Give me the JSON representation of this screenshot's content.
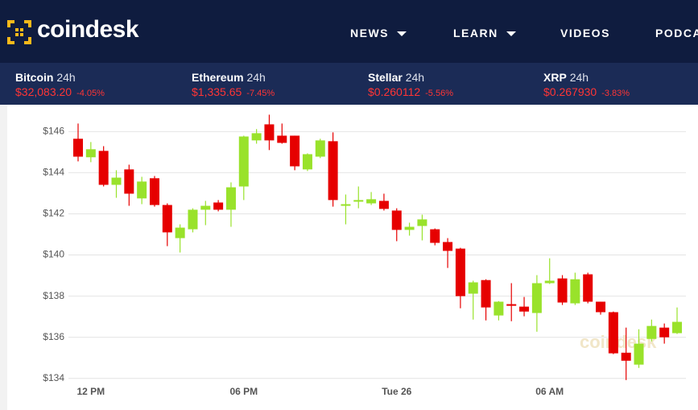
{
  "header": {
    "logo": "coindesk",
    "nav": [
      "NEWS",
      "LEARN",
      "VIDEOS",
      "PODCASTS"
    ]
  },
  "ticker": [
    {
      "name": "Bitcoin",
      "period": "24h",
      "price": "$32,083.20",
      "change": "-4.05%"
    },
    {
      "name": "Ethereum",
      "period": "24h",
      "price": "$1,335.65",
      "change": "-7.45%"
    },
    {
      "name": "Stellar",
      "period": "24h",
      "price": "$0.260112",
      "change": "-5.56%"
    },
    {
      "name": "XRP",
      "period": "24h",
      "price": "$0.267930",
      "change": "-3.83%"
    }
  ],
  "chart_data": {
    "type": "candlestick",
    "watermark": "coindesk",
    "categories": [
      null,
      "12 PM",
      null,
      null,
      null,
      null,
      null,
      null,
      null,
      null,
      null,
      null,
      null,
      "06 PM",
      null,
      null,
      null,
      null,
      null,
      null,
      null,
      null,
      null,
      null,
      null,
      "Tue 26",
      null,
      null,
      null,
      null,
      null,
      null,
      null,
      null,
      null,
      null,
      null,
      "06 AM",
      null,
      null,
      null,
      null,
      null,
      null,
      null,
      null,
      null,
      null
    ],
    "open": [
      145.65,
      144.75,
      145.06,
      143.41,
      144.16,
      142.75,
      143.73,
      142.43,
      140.82,
      141.25,
      142.2,
      142.55,
      142.2,
      143.33,
      145.57,
      146.35,
      145.8,
      145.8,
      144.16,
      144.78,
      145.53,
      142.39,
      142.59,
      142.51,
      142.63,
      142.16,
      141.22,
      141.41,
      141.25,
      140.63,
      140.31,
      138.12,
      138.78,
      137.06,
      137.61,
      137.49,
      137.18,
      138.63,
      138.86,
      137.65,
      139.06,
      137.73,
      137.22,
      135.25,
      134.67,
      135.92,
      136.47,
      136.2
    ],
    "high": [
      146.39,
      145.49,
      145.29,
      144.12,
      144.39,
      143.8,
      143.84,
      142.51,
      141.49,
      142.27,
      142.63,
      142.67,
      143.53,
      145.8,
      146.12,
      146.82,
      146.39,
      145.8,
      144.94,
      145.65,
      145.96,
      142.94,
      143.33,
      143.06,
      142.98,
      142.27,
      141.57,
      141.96,
      141.29,
      140.82,
      140.35,
      138.75,
      138.82,
      137.76,
      138.63,
      137.96,
      139.02,
      139.84,
      139.02,
      139.14,
      139.14,
      137.73,
      137.25,
      136.47,
      136.39,
      136.86,
      136.67,
      137.45
    ],
    "low": [
      144.55,
      144.51,
      143.33,
      142.78,
      142.39,
      142.47,
      142.35,
      140.43,
      140.12,
      141.1,
      141.45,
      142.12,
      141.37,
      142.67,
      145.41,
      145.1,
      145.41,
      144.12,
      144.08,
      144.71,
      142.35,
      141.49,
      142.27,
      142.43,
      142.16,
      140.67,
      140.94,
      140.71,
      140.47,
      139.37,
      137.41,
      136.86,
      136.82,
      136.82,
      136.78,
      137.02,
      136.27,
      138.59,
      137.57,
      137.57,
      137.65,
      137.1,
      135.18,
      133.92,
      134.51,
      135.8,
      135.69,
      136.16
    ],
    "close": [
      144.78,
      145.14,
      143.41,
      143.76,
      142.98,
      143.57,
      142.43,
      141.1,
      141.33,
      142.2,
      142.39,
      142.2,
      143.29,
      145.76,
      145.92,
      145.57,
      145.45,
      144.31,
      144.9,
      145.57,
      142.67,
      142.47,
      142.67,
      142.71,
      142.24,
      141.22,
      141.37,
      141.73,
      140.59,
      140.2,
      138.0,
      138.67,
      137.45,
      137.73,
      137.53,
      137.25,
      138.63,
      138.75,
      137.69,
      138.82,
      137.73,
      137.22,
      135.22,
      134.86,
      135.69,
      136.55,
      136.0,
      136.75
    ],
    "up_color": "#99e22b",
    "down_color": "#e60000",
    "ylim": [
      133.6,
      146.6
    ],
    "yticks": [
      {
        "value": 134,
        "label": "$134"
      },
      {
        "value": 136,
        "label": "$136"
      },
      {
        "value": 138,
        "label": "$138"
      },
      {
        "value": 140,
        "label": "$140"
      },
      {
        "value": 142,
        "label": "$142"
      },
      {
        "value": 144,
        "label": "$144"
      },
      {
        "value": 146,
        "label": "$146"
      }
    ],
    "grid": true
  }
}
